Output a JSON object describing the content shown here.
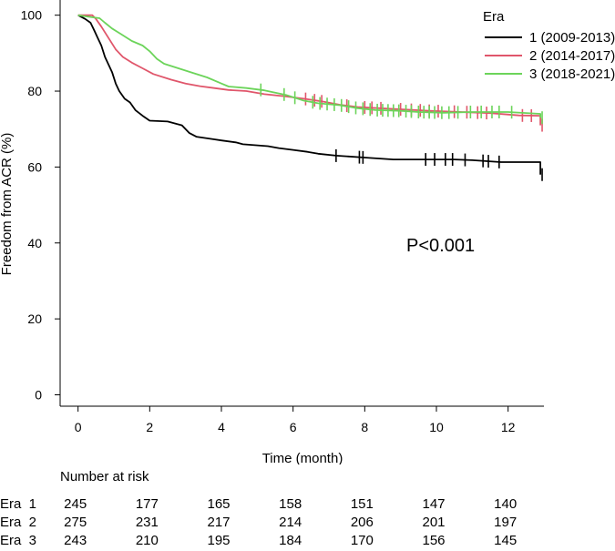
{
  "chart_data": {
    "type": "line",
    "subtype": "kaplan-meier",
    "xlabel": "Time (month)",
    "ylabel": "Freedom from ACR (%)",
    "xlim": [
      -0.5,
      13.0
    ],
    "ylim": [
      -3,
      104
    ],
    "xticks": [
      0,
      2,
      4,
      6,
      8,
      10,
      12
    ],
    "yticks": [
      0,
      20,
      40,
      60,
      80,
      100
    ],
    "grid": false,
    "legend": {
      "title": "Era",
      "position": "top-right"
    },
    "annotation": "P<0.001",
    "series": [
      {
        "name": "1 (2009-2013)",
        "color": "#000000",
        "points": [
          [
            0,
            100
          ],
          [
            0.2,
            99
          ],
          [
            0.35,
            98
          ],
          [
            0.45,
            96
          ],
          [
            0.55,
            94
          ],
          [
            0.65,
            92
          ],
          [
            0.75,
            89
          ],
          [
            0.85,
            87
          ],
          [
            0.95,
            85
          ],
          [
            1.05,
            82
          ],
          [
            1.15,
            80
          ],
          [
            1.3,
            78
          ],
          [
            1.45,
            77
          ],
          [
            1.6,
            75
          ],
          [
            1.8,
            73.5
          ],
          [
            2.0,
            72.2
          ],
          [
            2.5,
            72
          ],
          [
            2.9,
            71
          ],
          [
            3.1,
            69
          ],
          [
            3.3,
            68
          ],
          [
            3.8,
            67.3
          ],
          [
            4.0,
            67
          ],
          [
            4.4,
            66.5
          ],
          [
            4.6,
            66
          ],
          [
            5.3,
            65.5
          ],
          [
            5.6,
            65
          ],
          [
            6.0,
            64.5
          ],
          [
            6.4,
            64
          ],
          [
            6.7,
            63.5
          ],
          [
            7.2,
            63
          ],
          [
            8.0,
            62.5
          ],
          [
            8.8,
            62
          ],
          [
            9.5,
            62
          ],
          [
            10.5,
            62
          ],
          [
            11.0,
            61.8
          ],
          [
            11.8,
            61.3
          ],
          [
            12.9,
            61.3
          ],
          [
            12.9,
            58
          ]
        ],
        "censor_marks": [
          7.2,
          7.85,
          7.95,
          9.7,
          9.95,
          10.25,
          10.45,
          10.8,
          11.3,
          11.45,
          11.75,
          12.95
        ]
      },
      {
        "name": "2 (2014-2017)",
        "color": "#e0566b",
        "points": [
          [
            0,
            100
          ],
          [
            0.4,
            100
          ],
          [
            0.5,
            99
          ],
          [
            0.65,
            97
          ],
          [
            0.85,
            94
          ],
          [
            1.05,
            91
          ],
          [
            1.25,
            89
          ],
          [
            1.5,
            87.5
          ],
          [
            1.8,
            86
          ],
          [
            2.1,
            84.5
          ],
          [
            2.6,
            83
          ],
          [
            3.0,
            82
          ],
          [
            3.4,
            81.3
          ],
          [
            3.8,
            80.8
          ],
          [
            4.2,
            80.3
          ],
          [
            4.7,
            80
          ],
          [
            5.2,
            79.2
          ],
          [
            5.8,
            78.6
          ],
          [
            6.3,
            78
          ],
          [
            6.8,
            77.3
          ],
          [
            7.3,
            76.4
          ],
          [
            7.8,
            75.8
          ],
          [
            8.4,
            75.5
          ],
          [
            9.0,
            75.2
          ],
          [
            9.8,
            74.8
          ],
          [
            10.7,
            74.5
          ],
          [
            11.5,
            74.2
          ],
          [
            12.3,
            73.6
          ],
          [
            12.9,
            73.5
          ],
          [
            12.9,
            71
          ]
        ],
        "censor_marks": [
          6.35,
          6.6,
          6.8,
          7.5,
          8.0,
          8.2,
          8.45,
          9.0,
          9.3,
          9.55,
          9.8,
          10.05,
          10.5,
          10.85,
          11.15,
          11.4,
          12.4,
          12.65,
          12.95
        ]
      },
      {
        "name": "3 (2018-2021)",
        "color": "#6cd45a",
        "points": [
          [
            0,
            100
          ],
          [
            0.2,
            99.7
          ],
          [
            0.6,
            99.2
          ],
          [
            0.75,
            98
          ],
          [
            0.95,
            96.5
          ],
          [
            1.2,
            95
          ],
          [
            1.5,
            93.2
          ],
          [
            1.8,
            92
          ],
          [
            2.0,
            90.5
          ],
          [
            2.2,
            88.5
          ],
          [
            2.4,
            87.2
          ],
          [
            2.8,
            86
          ],
          [
            3.2,
            84.8
          ],
          [
            3.6,
            83.6
          ],
          [
            4.0,
            82
          ],
          [
            4.2,
            81.2
          ],
          [
            4.7,
            80.8
          ],
          [
            5.2,
            80.2
          ],
          [
            5.8,
            79
          ],
          [
            6.3,
            77.5
          ],
          [
            6.7,
            76.8
          ],
          [
            7.3,
            76.3
          ],
          [
            7.8,
            75.5
          ],
          [
            8.3,
            75
          ],
          [
            9.0,
            74.8
          ],
          [
            9.5,
            74.5
          ],
          [
            10.2,
            74.3
          ],
          [
            11.0,
            74.5
          ],
          [
            12.0,
            74.5
          ],
          [
            12.9,
            74
          ],
          [
            12.9,
            73
          ]
        ],
        "censor_marks": [
          5.1,
          5.75,
          6.05,
          6.55,
          6.75,
          6.95,
          7.15,
          7.35,
          7.55,
          7.75,
          7.95,
          8.15,
          8.35,
          8.5,
          8.65,
          8.8,
          8.95,
          9.15,
          9.3,
          9.5,
          9.65,
          9.8,
          9.95,
          10.15,
          10.35,
          10.6,
          10.95,
          11.25,
          11.55,
          11.75,
          12.1,
          12.95
        ]
      }
    ]
  },
  "risk_table": {
    "title": "Number at risk",
    "times": [
      0,
      2,
      4,
      6,
      8,
      10,
      12
    ],
    "rows": [
      {
        "label": "Era  1",
        "values": [
          "245",
          "177",
          "165",
          "158",
          "151",
          "147",
          "140"
        ]
      },
      {
        "label": "Era  2",
        "values": [
          "275",
          "231",
          "217",
          "214",
          "206",
          "201",
          "197"
        ]
      },
      {
        "label": "Era  3",
        "values": [
          "243",
          "210",
          "195",
          "184",
          "170",
          "156",
          "145"
        ]
      }
    ]
  }
}
